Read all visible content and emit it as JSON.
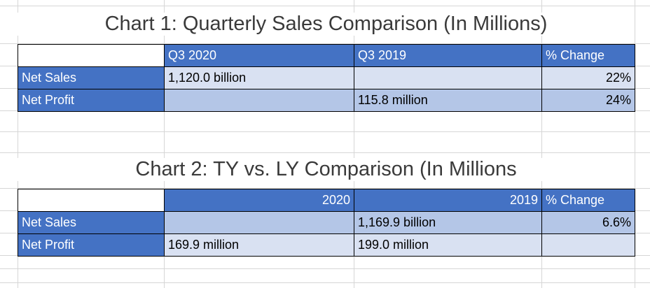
{
  "chart1": {
    "title": "Chart 1: Quarterly Sales Comparison (In Millions)",
    "header": [
      null,
      "Q3 2020",
      "Q3 2019",
      "% Change"
    ],
    "rows": [
      [
        "Net Sales",
        "1,120.0 billion",
        null,
        "22%"
      ],
      [
        "Net Profit",
        null,
        "115.8 million",
        "24%"
      ]
    ]
  },
  "chart2": {
    "title": "Chart 2: TY vs. LY Comparison (In Millions",
    "header": [
      null,
      "2020",
      "2019",
      "% Change"
    ],
    "rows": [
      [
        "Net Sales",
        null,
        "1,169.9 billion",
        "6.6%"
      ],
      [
        "Net Profit",
        "169.9 million",
        "199.0 million",
        null
      ]
    ]
  }
}
